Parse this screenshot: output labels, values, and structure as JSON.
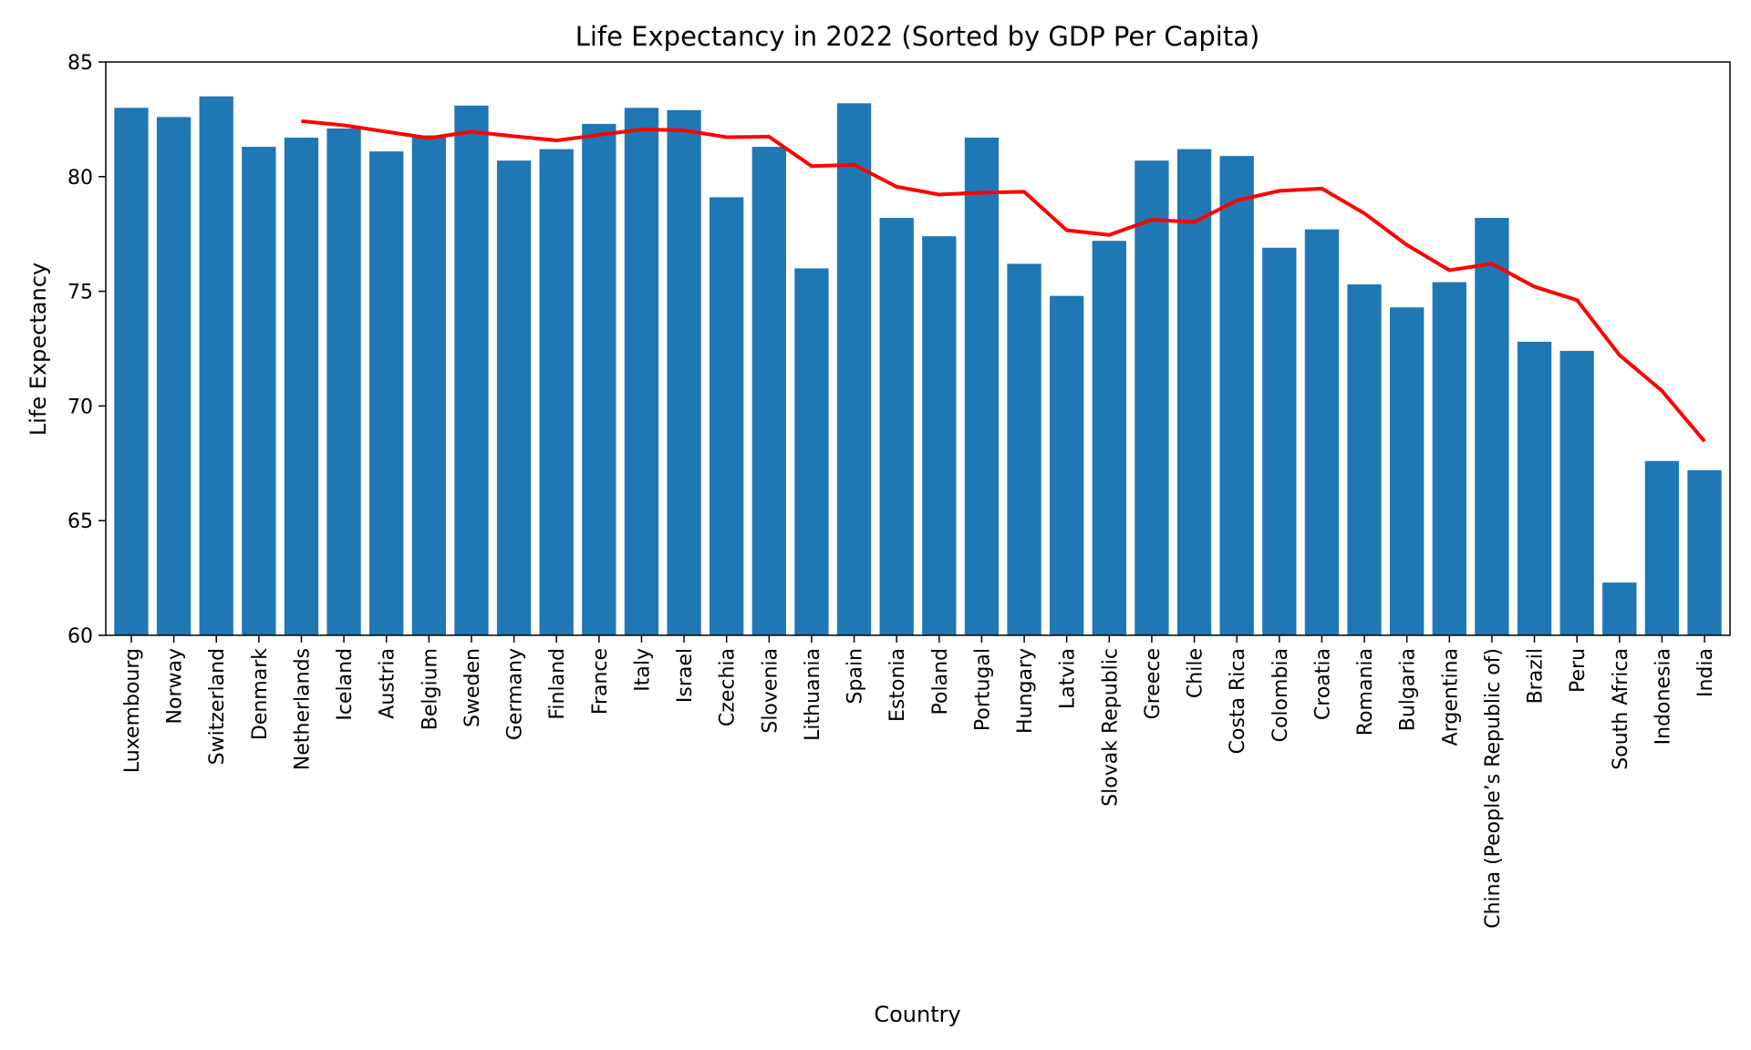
{
  "chart_data": {
    "type": "bar",
    "title": "Life Expectancy in 2022 (Sorted by GDP Per Capita)",
    "xlabel": "Country",
    "ylabel": "Life Expectancy",
    "ylim": [
      60,
      85
    ],
    "yticks": [
      60,
      65,
      70,
      75,
      80,
      85
    ],
    "grid": false,
    "bar_color": "#1f77b4",
    "line_color": "#ff0000",
    "categories": [
      "Luxembourg",
      "Norway",
      "Switzerland",
      "Denmark",
      "Netherlands",
      "Iceland",
      "Austria",
      "Belgium",
      "Sweden",
      "Germany",
      "Finland",
      "France",
      "Italy",
      "Israel",
      "Czechia",
      "Slovenia",
      "Lithuania",
      "Spain",
      "Estonia",
      "Poland",
      "Portugal",
      "Hungary",
      "Latvia",
      "Slovak Republic",
      "Greece",
      "Chile",
      "Costa Rica",
      "Colombia",
      "Croatia",
      "Romania",
      "Bulgaria",
      "Argentina",
      "China (People’s Republic of)",
      "Brazil",
      "Peru",
      "South Africa",
      "Indonesia",
      "India"
    ],
    "series": [
      {
        "type": "bar",
        "values": [
          83.0,
          82.6,
          83.5,
          81.3,
          81.7,
          82.1,
          81.1,
          81.8,
          83.1,
          80.7,
          81.2,
          82.3,
          83.0,
          82.9,
          79.1,
          81.3,
          76.0,
          83.2,
          78.2,
          77.4,
          81.7,
          76.2,
          74.8,
          77.2,
          80.7,
          81.2,
          80.9,
          76.9,
          77.7,
          75.3,
          74.3,
          75.4,
          78.2,
          72.8,
          72.4,
          62.3,
          67.6,
          67.2
        ]
      },
      {
        "type": "line",
        "values": [
          null,
          null,
          null,
          null,
          82.42,
          82.24,
          81.96,
          81.68,
          81.96,
          81.76,
          81.58,
          81.82,
          82.06,
          82.02,
          81.72,
          81.74,
          80.46,
          80.52,
          79.56,
          79.22,
          79.3,
          79.34,
          77.66,
          77.46,
          78.12,
          78.02,
          78.96,
          79.38,
          79.48,
          78.4,
          77.02,
          75.92,
          76.2,
          75.2,
          74.62,
          72.22,
          70.66,
          68.46
        ]
      }
    ]
  }
}
